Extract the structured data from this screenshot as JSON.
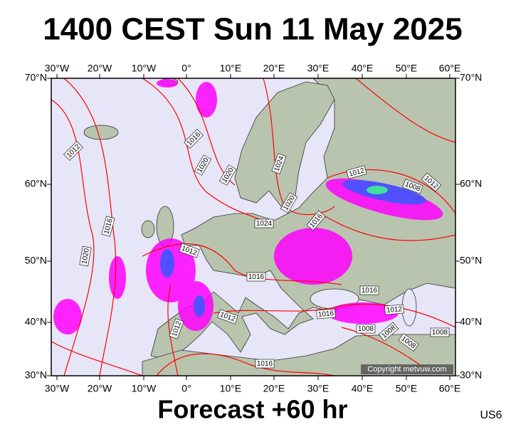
{
  "header": {
    "title": "1400 CEST Sun 11 May 2025"
  },
  "axes": {
    "lon_labels": [
      "30°W",
      "20°W",
      "10°W",
      "0°",
      "10°E",
      "20°E",
      "30°E",
      "40°E",
      "50°E",
      "60°E"
    ],
    "lat_labels": [
      "70°N",
      "60°N",
      "50°N",
      "40°N",
      "30°N"
    ]
  },
  "isobar_labels": [
    "1012",
    "1016",
    "1020",
    "1020",
    "1024",
    "1012",
    "1008",
    "1012",
    "1020",
    "1016",
    "1024",
    "1016",
    "1020",
    "1012",
    "1016",
    "1016",
    "1016",
    "1012",
    "1012",
    "1008",
    "1008",
    "1008",
    "1008",
    "1012",
    "1016"
  ],
  "copyright": "Copyright metvuw.com",
  "footer": {
    "forecast": "Forecast +60 hr",
    "code": "US6"
  }
}
